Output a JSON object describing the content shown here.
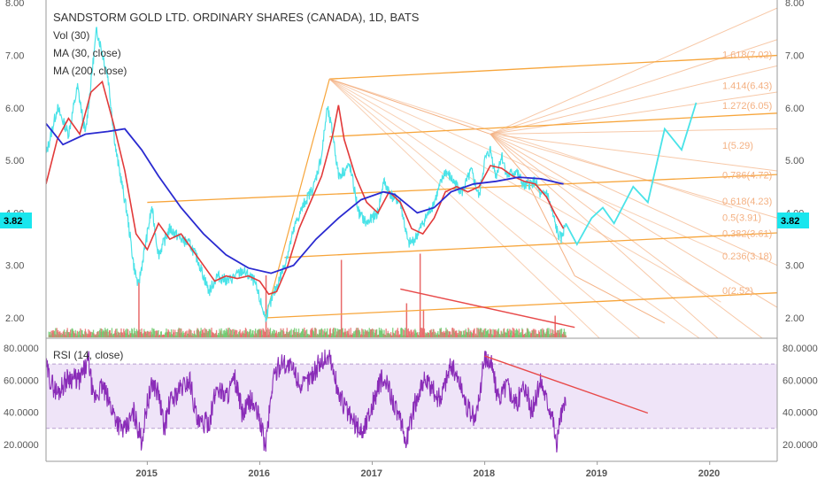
{
  "chart_data": [
    {
      "type": "line",
      "title": "SANDSTORM GOLD LTD. ORDINARY SHARES (CANADA), 1D, BATS",
      "legend": [
        "Vol (30)",
        "MA (30, close)",
        "MA (200, close)"
      ],
      "ylim": [
        1.85,
        8.0
      ],
      "yticks": [
        "8.00",
        "7.00",
        "6.00",
        "5.00",
        "4.00",
        "3.00",
        "2.00"
      ],
      "xticks": [
        "2015",
        "2016",
        "2017",
        "2018",
        "2019",
        "2020"
      ],
      "last_price_label": "3.82",
      "colors": {
        "price": "#4ae3e8",
        "ma30": "#e23a3a",
        "ma200": "#2a2ad0",
        "pitchfork": "#f7a53b",
        "fib": "#f4b183",
        "trendline": "#e84a4a",
        "projection": "#4ae3e8",
        "volume_up": "#6cc96c",
        "volume_down": "#e86a6a"
      },
      "price_anchors": [
        [
          2014.1,
          5.1
        ],
        [
          2014.2,
          6.0
        ],
        [
          2014.3,
          5.5
        ],
        [
          2014.38,
          6.4
        ],
        [
          2014.45,
          5.5
        ],
        [
          2014.55,
          7.5
        ],
        [
          2014.65,
          6.6
        ],
        [
          2014.72,
          5.2
        ],
        [
          2014.82,
          4.0
        ],
        [
          2014.88,
          3.0
        ],
        [
          2014.92,
          2.6
        ],
        [
          2015.0,
          3.6
        ],
        [
          2015.04,
          4.1
        ],
        [
          2015.1,
          3.2
        ],
        [
          2015.2,
          3.7
        ],
        [
          2015.3,
          3.5
        ],
        [
          2015.38,
          3.4
        ],
        [
          2015.45,
          3.1
        ],
        [
          2015.55,
          2.5
        ],
        [
          2015.62,
          2.8
        ],
        [
          2015.72,
          2.7
        ],
        [
          2015.85,
          2.9
        ],
        [
          2015.95,
          2.7
        ],
        [
          2016.05,
          2.0
        ],
        [
          2016.15,
          2.6
        ],
        [
          2016.22,
          3.0
        ],
        [
          2016.32,
          3.8
        ],
        [
          2016.4,
          4.2
        ],
        [
          2016.48,
          4.5
        ],
        [
          2016.55,
          5.1
        ],
        [
          2016.6,
          6.0
        ],
        [
          2016.65,
          5.5
        ],
        [
          2016.7,
          4.7
        ],
        [
          2016.8,
          4.9
        ],
        [
          2016.88,
          4.0
        ],
        [
          2016.95,
          3.8
        ],
        [
          2017.05,
          4.0
        ],
        [
          2017.1,
          4.6
        ],
        [
          2017.18,
          4.3
        ],
        [
          2017.25,
          4.2
        ],
        [
          2017.32,
          3.4
        ],
        [
          2017.38,
          3.5
        ],
        [
          2017.45,
          3.8
        ],
        [
          2017.55,
          4.2
        ],
        [
          2017.65,
          4.8
        ],
        [
          2017.72,
          4.6
        ],
        [
          2017.8,
          4.4
        ],
        [
          2017.88,
          4.8
        ],
        [
          2017.95,
          4.3
        ],
        [
          2018.0,
          5.0
        ],
        [
          2018.05,
          5.2
        ],
        [
          2018.1,
          4.7
        ],
        [
          2018.15,
          5.1
        ],
        [
          2018.2,
          4.7
        ],
        [
          2018.28,
          4.8
        ],
        [
          2018.35,
          4.5
        ],
        [
          2018.45,
          4.6
        ],
        [
          2018.5,
          4.3
        ],
        [
          2018.55,
          4.4
        ],
        [
          2018.6,
          4.0
        ],
        [
          2018.65,
          3.6
        ],
        [
          2018.68,
          3.5
        ],
        [
          2018.72,
          3.8
        ]
      ],
      "ma30": [
        [
          2014.1,
          4.55
        ],
        [
          2014.2,
          5.4
        ],
        [
          2014.3,
          5.8
        ],
        [
          2014.4,
          5.5
        ],
        [
          2014.5,
          6.3
        ],
        [
          2014.6,
          6.5
        ],
        [
          2014.7,
          5.7
        ],
        [
          2014.8,
          4.8
        ],
        [
          2014.9,
          3.6
        ],
        [
          2015.0,
          3.3
        ],
        [
          2015.1,
          3.8
        ],
        [
          2015.2,
          3.5
        ],
        [
          2015.3,
          3.6
        ],
        [
          2015.4,
          3.3
        ],
        [
          2015.5,
          3.0
        ],
        [
          2015.6,
          2.7
        ],
        [
          2015.7,
          2.8
        ],
        [
          2015.8,
          2.75
        ],
        [
          2015.9,
          2.8
        ],
        [
          2016.0,
          2.7
        ],
        [
          2016.08,
          2.45
        ],
        [
          2016.15,
          2.5
        ],
        [
          2016.25,
          3.0
        ],
        [
          2016.35,
          3.7
        ],
        [
          2016.45,
          4.2
        ],
        [
          2016.55,
          4.7
        ],
        [
          2016.65,
          5.5
        ],
        [
          2016.7,
          6.05
        ],
        [
          2016.75,
          5.4
        ],
        [
          2016.85,
          4.7
        ],
        [
          2016.95,
          4.2
        ],
        [
          2017.05,
          4.0
        ],
        [
          2017.15,
          4.4
        ],
        [
          2017.25,
          4.2
        ],
        [
          2017.35,
          3.7
        ],
        [
          2017.45,
          3.6
        ],
        [
          2017.55,
          3.9
        ],
        [
          2017.65,
          4.4
        ],
        [
          2017.75,
          4.5
        ],
        [
          2017.85,
          4.4
        ],
        [
          2017.95,
          4.5
        ],
        [
          2018.05,
          4.9
        ],
        [
          2018.15,
          4.85
        ],
        [
          2018.25,
          4.7
        ],
        [
          2018.35,
          4.6
        ],
        [
          2018.45,
          4.55
        ],
        [
          2018.55,
          4.3
        ],
        [
          2018.62,
          4.0
        ],
        [
          2018.7,
          3.7
        ]
      ],
      "ma200": [
        [
          2014.1,
          5.7
        ],
        [
          2014.25,
          5.3
        ],
        [
          2014.45,
          5.5
        ],
        [
          2014.65,
          5.55
        ],
        [
          2014.8,
          5.6
        ],
        [
          2014.95,
          5.2
        ],
        [
          2015.1,
          4.7
        ],
        [
          2015.3,
          4.1
        ],
        [
          2015.5,
          3.6
        ],
        [
          2015.7,
          3.2
        ],
        [
          2015.9,
          2.95
        ],
        [
          2016.1,
          2.85
        ],
        [
          2016.3,
          3.0
        ],
        [
          2016.5,
          3.5
        ],
        [
          2016.7,
          3.9
        ],
        [
          2016.9,
          4.25
        ],
        [
          2017.1,
          4.4
        ],
        [
          2017.2,
          4.35
        ],
        [
          2017.4,
          4.0
        ],
        [
          2017.55,
          4.1
        ],
        [
          2017.7,
          4.4
        ],
        [
          2017.9,
          4.55
        ],
        [
          2018.1,
          4.6
        ],
        [
          2018.3,
          4.68
        ],
        [
          2018.5,
          4.65
        ],
        [
          2018.7,
          4.55
        ]
      ],
      "projection": [
        [
          2018.72,
          3.8
        ],
        [
          2018.82,
          3.4
        ],
        [
          2018.95,
          3.9
        ],
        [
          2019.05,
          4.1
        ],
        [
          2019.15,
          3.8
        ],
        [
          2019.32,
          4.5
        ],
        [
          2019.45,
          4.2
        ],
        [
          2019.6,
          5.6
        ],
        [
          2019.75,
          5.2
        ],
        [
          2019.88,
          6.1
        ]
      ],
      "pitchfork": {
        "handle": [
          [
            2016.05,
            2.0
          ],
          [
            2016.62,
            6.55
          ]
        ],
        "median_pivot": [
          2016.62,
          6.55
        ],
        "median_end": [
          2018.05,
          5.5
        ],
        "lines_y_at_start": [
          6.55,
          5.45,
          4.2,
          3.2,
          2.0
        ],
        "x_start": 2015.0,
        "x_end": 2020.6
      },
      "fib_labels": [
        "1.618(7.02)",
        "1.414(6.43)",
        "1.272(6.05)",
        "1(5.29)",
        "0.786(4.72)",
        "0.618(4.23)",
        "0.5(3.91)",
        "0.382(3.61)",
        "0.236(3.18)",
        "0(2.52)"
      ],
      "fib_levels": [
        7.02,
        6.43,
        6.05,
        5.29,
        4.72,
        4.23,
        3.91,
        3.61,
        3.18,
        2.52
      ],
      "price_trendline": [
        [
          2017.25,
          2.55
        ],
        [
          2018.8,
          1.82
        ]
      ],
      "volume_spikes": [
        [
          2014.92,
          0.9
        ],
        [
          2016.05,
          1.0
        ],
        [
          2016.72,
          1.25
        ],
        [
          2017.3,
          0.55
        ],
        [
          2017.42,
          1.35
        ],
        [
          2017.45,
          0.45
        ],
        [
          2018.62,
          0.35
        ]
      ]
    },
    {
      "type": "line",
      "title": "",
      "legend": [
        "RSI (14, close)"
      ],
      "ylim": [
        14,
        85
      ],
      "yticks": [
        "80.0000",
        "60.0000",
        "40.0000",
        "20.0000"
      ],
      "band": [
        30,
        70
      ],
      "rsi_trendline": [
        [
          2018.0,
          75
        ],
        [
          2019.45,
          39.5
        ]
      ],
      "colors": {
        "rsi": "#8a2cb8",
        "band_fill": "#e8d9f5",
        "band_line": "#b9a0d0"
      },
      "rsi_anchors": [
        [
          2014.1,
          68
        ],
        [
          2014.15,
          58
        ],
        [
          2014.2,
          52
        ],
        [
          2014.3,
          62
        ],
        [
          2014.4,
          60
        ],
        [
          2014.48,
          72
        ],
        [
          2014.52,
          48
        ],
        [
          2014.6,
          56
        ],
        [
          2014.7,
          40
        ],
        [
          2014.75,
          32
        ],
        [
          2014.8,
          28
        ],
        [
          2014.88,
          40
        ],
        [
          2014.95,
          22
        ],
        [
          2015.0,
          46
        ],
        [
          2015.05,
          58
        ],
        [
          2015.1,
          52
        ],
        [
          2015.15,
          30
        ],
        [
          2015.2,
          46
        ],
        [
          2015.3,
          55
        ],
        [
          2015.38,
          60
        ],
        [
          2015.45,
          32
        ],
        [
          2015.55,
          34
        ],
        [
          2015.62,
          56
        ],
        [
          2015.7,
          50
        ],
        [
          2015.78,
          60
        ],
        [
          2015.85,
          38
        ],
        [
          2015.92,
          48
        ],
        [
          2016.0,
          36
        ],
        [
          2016.05,
          18
        ],
        [
          2016.12,
          62
        ],
        [
          2016.2,
          72
        ],
        [
          2016.3,
          66
        ],
        [
          2016.38,
          55
        ],
        [
          2016.45,
          62
        ],
        [
          2016.55,
          72
        ],
        [
          2016.62,
          75
        ],
        [
          2016.7,
          52
        ],
        [
          2016.78,
          40
        ],
        [
          2016.85,
          32
        ],
        [
          2016.92,
          28
        ],
        [
          2017.0,
          45
        ],
        [
          2017.08,
          60
        ],
        [
          2017.15,
          55
        ],
        [
          2017.22,
          40
        ],
        [
          2017.3,
          22
        ],
        [
          2017.38,
          45
        ],
        [
          2017.45,
          60
        ],
        [
          2017.52,
          55
        ],
        [
          2017.6,
          48
        ],
        [
          2017.7,
          70
        ],
        [
          2017.78,
          58
        ],
        [
          2017.85,
          42
        ],
        [
          2017.92,
          35
        ],
        [
          2018.0,
          75
        ],
        [
          2018.06,
          70
        ],
        [
          2018.12,
          48
        ],
        [
          2018.2,
          58
        ],
        [
          2018.28,
          44
        ],
        [
          2018.35,
          58
        ],
        [
          2018.42,
          40
        ],
        [
          2018.5,
          60
        ],
        [
          2018.55,
          48
        ],
        [
          2018.6,
          40
        ],
        [
          2018.64,
          17
        ],
        [
          2018.67,
          38
        ],
        [
          2018.72,
          44
        ]
      ]
    }
  ]
}
